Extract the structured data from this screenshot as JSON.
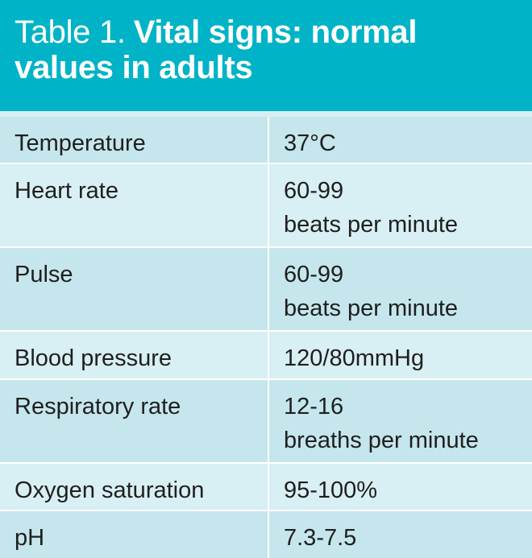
{
  "table": {
    "title_lead": "Table 1.",
    "title_main": "Vital signs: normal values in adults",
    "rows": [
      {
        "label": "Temperature",
        "value_line1": "37°C",
        "value_line2": ""
      },
      {
        "label": "Heart rate",
        "value_line1": "60-99",
        "value_line2": "beats per minute"
      },
      {
        "label": "Pulse",
        "value_line1": "60-99",
        "value_line2": "beats per minute"
      },
      {
        "label": "Blood pressure",
        "value_line1": "120/80mmHg",
        "value_line2": ""
      },
      {
        "label": "Respiratory rate",
        "value_line1": "12-16",
        "value_line2": "breaths per minute"
      },
      {
        "label": "Oxygen saturation",
        "value_line1": "95-100%",
        "value_line2": ""
      },
      {
        "label": "pH",
        "value_line1": "7.3-7.5",
        "value_line2": ""
      }
    ],
    "colors": {
      "header": "#00b3c6",
      "row_odd": "#c5e6ec",
      "row_even": "#d8eff3",
      "divider": "#ffffff"
    }
  }
}
